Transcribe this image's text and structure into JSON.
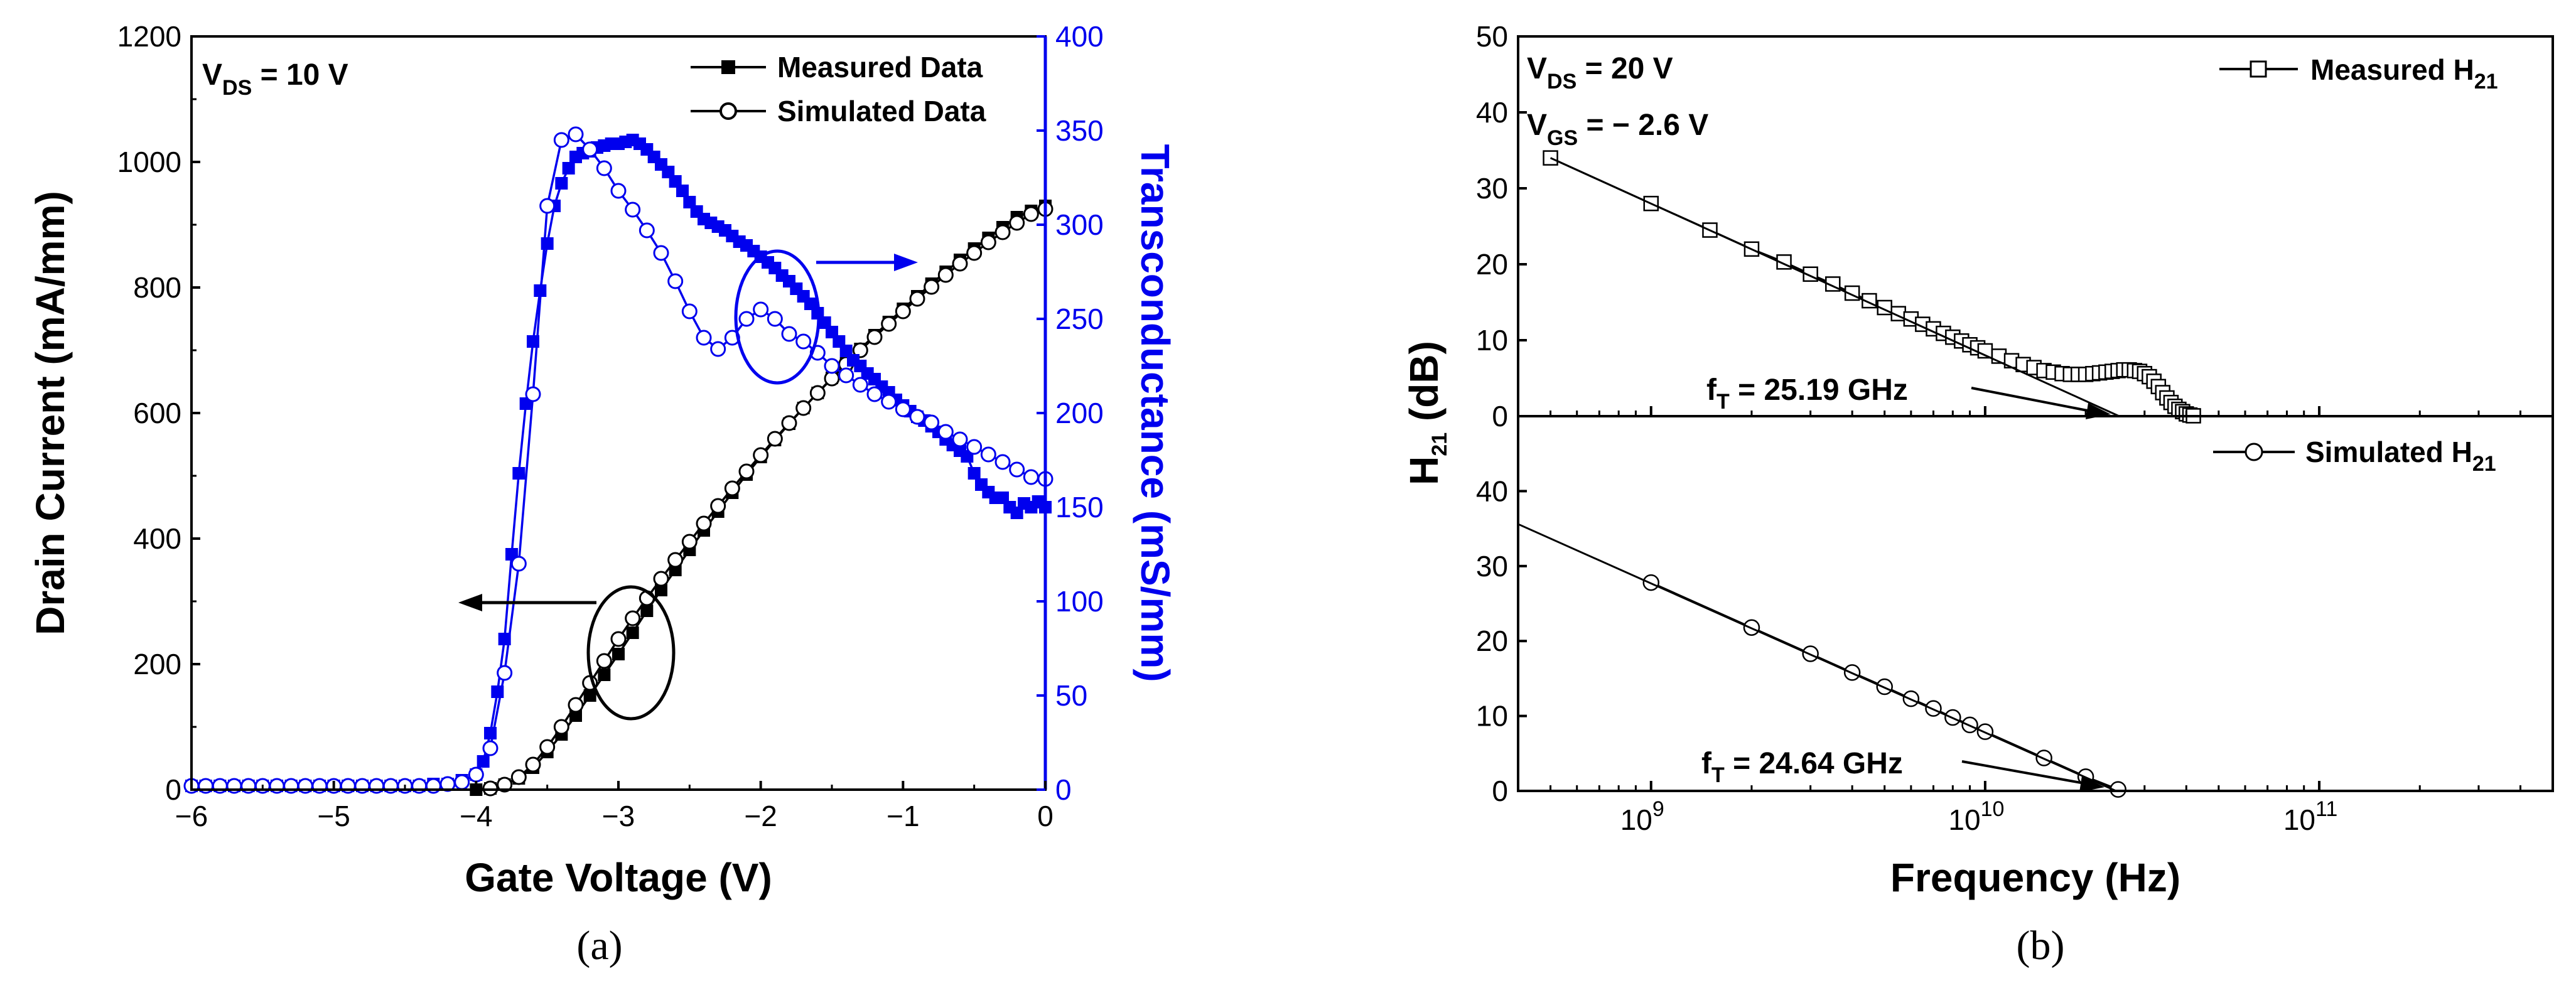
{
  "panel_labels": [
    "(a)",
    "(b)"
  ],
  "colors": {
    "black": "#000000",
    "blue": "#0000ee"
  },
  "chart_data": [
    {
      "type": "line",
      "panel": "(a)",
      "xlabel": "Gate Voltage (V)",
      "ylabel": "Drain Current (mA/mm)",
      "y2label": "Transconductance (mS/mm)",
      "xlim": [
        -6,
        0
      ],
      "ylim": [
        0,
        1200
      ],
      "y2lim": [
        0,
        400
      ],
      "x_ticks": [
        "−6",
        "−5",
        "−4",
        "−3",
        "−2",
        "−1",
        "0"
      ],
      "y_ticks": [
        "0",
        "200",
        "400",
        "600",
        "800",
        "1000",
        "1200"
      ],
      "y2_ticks": [
        "0",
        "50",
        "100",
        "150",
        "200",
        "250",
        "300",
        "350",
        "400"
      ],
      "annotation": {
        "main": "V",
        "sub": "DS",
        "rest": " = 10 V"
      },
      "legend": [
        {
          "label": "Measured Data",
          "marker": "filled-square"
        },
        {
          "label": "Simulated Data",
          "marker": "open-circle"
        }
      ],
      "series": [
        {
          "name": "Measured Drain Current",
          "axis": "left",
          "color": "#000000",
          "marker": "filled-square",
          "x": [
            -4.0,
            -3.9,
            -3.8,
            -3.7,
            -3.6,
            -3.5,
            -3.4,
            -3.3,
            -3.2,
            -3.1,
            -3.0,
            -2.9,
            -2.8,
            -2.7,
            -2.6,
            -2.5,
            -2.4,
            -2.3,
            -2.2,
            -2.1,
            -2.0,
            -1.9,
            -1.8,
            -1.7,
            -1.6,
            -1.5,
            -1.4,
            -1.3,
            -1.2,
            -1.1,
            -1.0,
            -0.9,
            -0.8,
            -0.7,
            -0.6,
            -0.5,
            -0.4,
            -0.3,
            -0.2,
            -0.1,
            0.0
          ],
          "y": [
            0,
            2,
            8,
            18,
            35,
            60,
            88,
            118,
            150,
            183,
            216,
            250,
            285,
            318,
            350,
            382,
            413,
            443,
            473,
            502,
            530,
            557,
            583,
            608,
            632,
            656,
            679,
            702,
            724,
            745,
            766,
            786,
            806,
            825,
            844,
            862,
            879,
            896,
            912,
            922,
            930
          ]
        },
        {
          "name": "Simulated Drain Current",
          "axis": "left",
          "color": "#000000",
          "marker": "open-circle",
          "x": [
            -3.9,
            -3.8,
            -3.7,
            -3.6,
            -3.5,
            -3.4,
            -3.3,
            -3.2,
            -3.1,
            -3.0,
            -2.9,
            -2.8,
            -2.7,
            -2.6,
            -2.5,
            -2.4,
            -2.3,
            -2.2,
            -2.1,
            -2.0,
            -1.9,
            -1.8,
            -1.7,
            -1.6,
            -1.5,
            -1.4,
            -1.3,
            -1.2,
            -1.1,
            -1.0,
            -0.9,
            -0.8,
            -0.7,
            -0.6,
            -0.5,
            -0.4,
            -0.3,
            -0.2,
            -0.1,
            0.0
          ],
          "y": [
            2,
            8,
            20,
            40,
            68,
            100,
            135,
            170,
            205,
            240,
            273,
            305,
            336,
            366,
            395,
            424,
            452,
            480,
            507,
            533,
            559,
            584,
            608,
            632,
            655,
            678,
            700,
            721,
            742,
            762,
            782,
            801,
            820,
            838,
            855,
            872,
            888,
            903,
            917,
            925
          ]
        },
        {
          "name": "Measured Transconductance",
          "axis": "right",
          "color": "#0000ee",
          "marker": "filled-square",
          "x": [
            -6.0,
            -5.9,
            -5.8,
            -5.7,
            -5.6,
            -5.5,
            -5.4,
            -5.3,
            -5.2,
            -5.1,
            -5.0,
            -4.9,
            -4.8,
            -4.7,
            -4.6,
            -4.5,
            -4.4,
            -4.3,
            -4.2,
            -4.1,
            -4.0,
            -3.95,
            -3.9,
            -3.85,
            -3.8,
            -3.75,
            -3.7,
            -3.65,
            -3.6,
            -3.55,
            -3.5,
            -3.45,
            -3.4,
            -3.35,
            -3.3,
            -3.25,
            -3.2,
            -3.15,
            -3.1,
            -3.05,
            -3.0,
            -2.95,
            -2.9,
            -2.85,
            -2.8,
            -2.75,
            -2.7,
            -2.65,
            -2.6,
            -2.55,
            -2.5,
            -2.45,
            -2.4,
            -2.35,
            -2.3,
            -2.25,
            -2.2,
            -2.15,
            -2.1,
            -2.05,
            -2.0,
            -1.95,
            -1.9,
            -1.85,
            -1.8,
            -1.75,
            -1.7,
            -1.65,
            -1.6,
            -1.55,
            -1.5,
            -1.45,
            -1.4,
            -1.35,
            -1.3,
            -1.25,
            -1.2,
            -1.15,
            -1.1,
            -1.05,
            -1.0,
            -0.95,
            -0.9,
            -0.85,
            -0.8,
            -0.75,
            -0.7,
            -0.65,
            -0.6,
            -0.55,
            -0.5,
            -0.45,
            -0.4,
            -0.35,
            -0.3,
            -0.25,
            -0.2,
            -0.15,
            -0.1,
            -0.05,
            0.0
          ],
          "y": [
            2,
            2,
            2,
            2,
            2,
            2,
            2,
            2,
            2,
            2,
            2,
            2,
            2,
            2,
            2,
            2,
            2,
            3,
            3,
            5,
            8,
            15,
            30,
            52,
            80,
            125,
            168,
            205,
            238,
            265,
            290,
            310,
            322,
            330,
            336,
            338,
            339,
            341,
            342,
            343,
            343,
            344,
            345,
            343,
            340,
            336,
            332,
            328,
            323,
            318,
            312,
            307,
            303,
            301,
            299,
            297,
            294,
            291,
            289,
            286,
            283,
            280,
            277,
            273,
            270,
            266,
            262,
            258,
            253,
            248,
            243,
            238,
            233,
            228,
            225,
            221,
            218,
            214,
            211,
            207,
            204,
            201,
            198,
            196,
            193,
            190,
            186,
            183,
            180,
            177,
            168,
            162,
            158,
            155,
            155,
            150,
            147,
            152,
            150,
            153,
            150
          ]
        },
        {
          "name": "Simulated Transconductance",
          "axis": "right",
          "color": "#0000ee",
          "marker": "open-circle",
          "x": [
            -6.0,
            -5.9,
            -5.8,
            -5.7,
            -5.6,
            -5.5,
            -5.4,
            -5.3,
            -5.2,
            -5.1,
            -5.0,
            -4.9,
            -4.8,
            -4.7,
            -4.6,
            -4.5,
            -4.4,
            -4.3,
            -4.2,
            -4.1,
            -4.0,
            -3.9,
            -3.8,
            -3.7,
            -3.6,
            -3.5,
            -3.4,
            -3.3,
            -3.2,
            -3.1,
            -3.0,
            -2.9,
            -2.8,
            -2.7,
            -2.6,
            -2.5,
            -2.4,
            -2.3,
            -2.2,
            -2.1,
            -2.0,
            -1.9,
            -1.8,
            -1.7,
            -1.6,
            -1.5,
            -1.4,
            -1.3,
            -1.2,
            -1.1,
            -1.0,
            -0.9,
            -0.8,
            -0.7,
            -0.6,
            -0.5,
            -0.4,
            -0.3,
            -0.2,
            -0.1,
            0.0
          ],
          "y": [
            2,
            2,
            2,
            2,
            2,
            2,
            2,
            2,
            2,
            2,
            2,
            2,
            2,
            2,
            2,
            2,
            2,
            2,
            3,
            4,
            8,
            22,
            62,
            120,
            210,
            310,
            345,
            348,
            340,
            330,
            318,
            308,
            297,
            285,
            270,
            254,
            240,
            234,
            240,
            250,
            255,
            250,
            242,
            238,
            232,
            225,
            220,
            215,
            210,
            206,
            202,
            198,
            195,
            190,
            186,
            182,
            178,
            174,
            170,
            166,
            165
          ]
        }
      ]
    },
    {
      "type": "line",
      "panel": "(b)",
      "xlabel": "Frequency (Hz)",
      "ylabel": "H21 (dB)",
      "x_scale": "log",
      "xlim": [
        400000000.0,
        500000000000.0
      ],
      "x_ticks": [
        {
          "base": "10",
          "exp": "9"
        },
        {
          "base": "10",
          "exp": "10"
        },
        {
          "base": "10",
          "exp": "11"
        }
      ],
      "subplots": [
        {
          "ylim": [
            0,
            50
          ],
          "y_ticks": [
            "0",
            "10",
            "20",
            "30",
            "40",
            "50"
          ],
          "annotations": [
            {
              "main": "V",
              "sub": "DS",
              "rest": " = 20 V"
            },
            {
              "main": "V",
              "sub": "GS",
              "rest": " = − 2.6 V"
            }
          ],
          "ft_label": {
            "main": "f",
            "sub": "T",
            "rest": " = 25.19 GHz"
          },
          "fT_GHz": 25.19,
          "legend": {
            "main": "Measured H",
            "sub": "21"
          },
          "series": [
            {
              "name": "Measured H21",
              "marker": "open-square",
              "x": [
                500000000.0,
                1000000000.0,
                1500000000.0,
                2000000000.0,
                2500000000.0,
                3000000000.0,
                3500000000.0,
                4000000000.0,
                4500000000.0,
                5000000000.0,
                5500000000.0,
                6000000000.0,
                6500000000.0,
                7000000000.0,
                7500000000.0,
                8000000000.0,
                8500000000.0,
                9000000000.0,
                9500000000.0,
                10000000000.0,
                11000000000.0,
                12000000000.0,
                13000000000.0,
                14000000000.0,
                15000000000.0,
                16000000000.0,
                17000000000.0,
                18000000000.0,
                19000000000.0,
                20000000000.0,
                21000000000.0,
                22000000000.0,
                23000000000.0,
                24000000000.0,
                25000000000.0,
                26000000000.0,
                27000000000.0,
                28000000000.0,
                29000000000.0,
                30000000000.0,
                31000000000.0,
                32000000000.0,
                33000000000.0,
                34000000000.0,
                35000000000.0,
                36000000000.0,
                37000000000.0,
                38000000000.0,
                39000000000.0,
                40000000000.0,
                41000000000.0,
                42000000000.0
              ],
              "y": [
                34,
                28,
                24.5,
                22,
                20.3,
                18.7,
                17.4,
                16.2,
                15.2,
                14.3,
                13.5,
                12.8,
                12.1,
                11.5,
                10.9,
                10.4,
                9.9,
                9.4,
                9.0,
                8.6,
                7.9,
                7.3,
                6.8,
                6.4,
                6.0,
                5.8,
                5.6,
                5.5,
                5.5,
                5.5,
                5.6,
                5.7,
                5.8,
                5.9,
                6.0,
                6.1,
                6.1,
                6.0,
                5.9,
                5.6,
                5.2,
                4.6,
                3.9,
                3.1,
                2.4,
                1.8,
                1.3,
                0.9,
                0.6,
                0.3,
                0.15,
                0.05
              ]
            },
            {
              "name": "Measured fit line",
              "marker": "none",
              "x": [
                500000000.0,
                25190000000.0
              ],
              "y": [
                34.0,
                0
              ]
            }
          ]
        },
        {
          "ylim": [
            0,
            50
          ],
          "y_ticks": [
            "0",
            "10",
            "20",
            "30",
            "40"
          ],
          "ft_label": {
            "main": "f",
            "sub": "T",
            "rest": " = 24.64 GHz"
          },
          "fT_GHz": 24.64,
          "legend": {
            "main": "Simulated H",
            "sub": "21"
          },
          "series": [
            {
              "name": "Simulated H21",
              "marker": "open-circle",
              "x": [
                1000000000.0,
                2000000000.0,
                3000000000.0,
                4000000000.0,
                5000000000.0,
                6000000000.0,
                7000000000.0,
                8000000000.0,
                9000000000.0,
                10000000000.0,
                15000000000.0,
                20000000000.0,
                25000000000.0
              ],
              "y": [
                27.8,
                21.8,
                18.3,
                15.8,
                13.9,
                12.3,
                11.0,
                9.8,
                8.8,
                7.9,
                4.4,
                1.9,
                0.2
              ]
            },
            {
              "name": "Simulated fit line",
              "marker": "none",
              "x": [
                400000000.0,
                24640000000.0
              ],
              "y": [
                35.6,
                0
              ]
            }
          ]
        }
      ]
    }
  ]
}
